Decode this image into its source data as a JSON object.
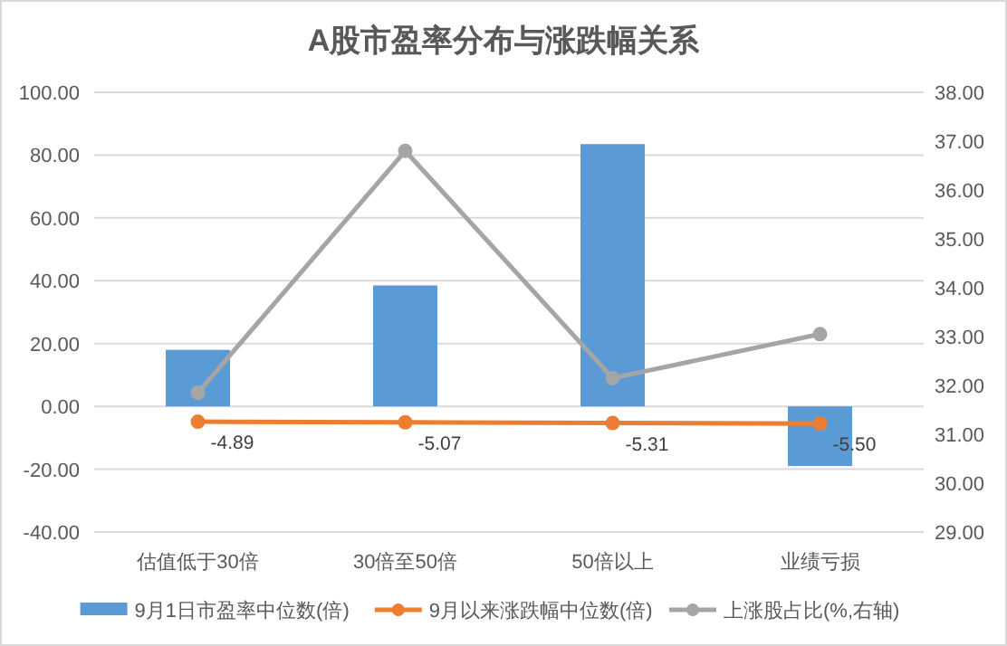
{
  "chart_data": {
    "type": "bar",
    "title": "A股市盈率分布与涨跌幅关系",
    "categories": [
      "估值低于30倍",
      "30倍至50倍",
      "50倍以上",
      "业绩亏损"
    ],
    "series": [
      {
        "name": "9月1日市盈率中位数(倍)",
        "color": "#5b9bd5",
        "values": [
          18,
          38.5,
          83.5,
          -19
        ]
      },
      {
        "name": "9月以来涨跌幅中位数(倍)",
        "type": "line",
        "color": "#ed7d31",
        "values": [
          -4.89,
          -5.07,
          -5.31,
          -5.5
        ],
        "marker": "circle",
        "value_labels": [
          "-4.89",
          "-5.07",
          "-5.31",
          "-5.50"
        ]
      },
      {
        "name": "上涨股占比(%,右轴)",
        "type": "line",
        "color": "#a5a5a5",
        "axis": "y2",
        "values": [
          31.85,
          36.8,
          32.15,
          33.05
        ],
        "marker": "circle"
      }
    ],
    "ylim": [
      -40,
      100
    ],
    "yticks": [
      {
        "value": -40,
        "label": "-40.00"
      },
      {
        "value": -20,
        "label": "-20.00"
      },
      {
        "value": 0,
        "label": "0.00"
      },
      {
        "value": 20,
        "label": "20.00"
      },
      {
        "value": 40,
        "label": "40.00"
      },
      {
        "value": 60,
        "label": "60.00"
      },
      {
        "value": 80,
        "label": "80.00"
      },
      {
        "value": 100,
        "label": "100.00"
      }
    ],
    "y2lim": [
      29,
      38
    ],
    "y2ticks": [
      {
        "value": 29,
        "label": "29.00"
      },
      {
        "value": 30,
        "label": "30.00"
      },
      {
        "value": 31,
        "label": "31.00"
      },
      {
        "value": 32,
        "label": "32.00"
      },
      {
        "value": 33,
        "label": "33.00"
      },
      {
        "value": 34,
        "label": "34.00"
      },
      {
        "value": 35,
        "label": "35.00"
      },
      {
        "value": 36,
        "label": "36.00"
      },
      {
        "value": 37,
        "label": "37.00"
      },
      {
        "value": 38,
        "label": "38.00"
      }
    ],
    "grid": "y",
    "legend": "bottom"
  }
}
